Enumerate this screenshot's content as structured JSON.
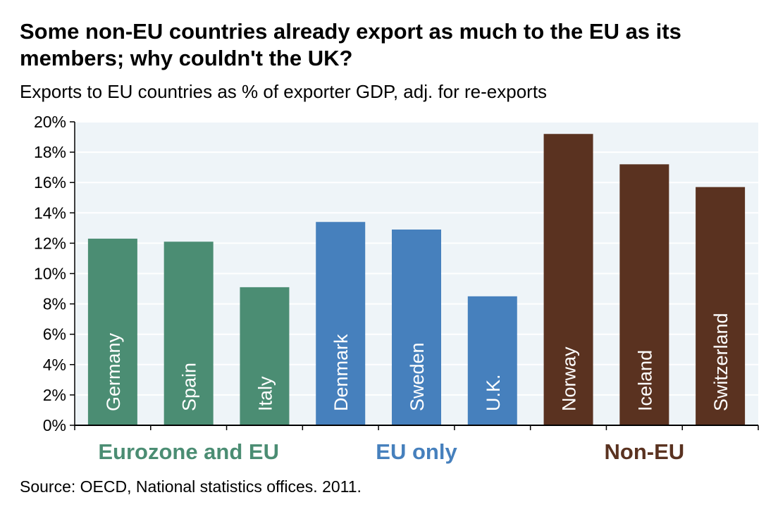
{
  "title": "Some non-EU countries already export as much to the EU as its members; why couldn't the UK?",
  "subtitle": "Exports to EU countries as % of exporter GDP, adj. for re-exports",
  "source": "Source: OECD, National statistics offices. 2011.",
  "chart_data": {
    "type": "bar",
    "title": "Some non-EU countries already export as much to the EU as its members; why couldn't the UK?",
    "subtitle": "Exports to EU countries as % of exporter GDP, adj. for re-exports",
    "xlabel": "",
    "ylabel": "",
    "ylim": [
      0,
      20
    ],
    "yticks": [
      "0%",
      "2%",
      "4%",
      "6%",
      "8%",
      "10%",
      "12%",
      "14%",
      "16%",
      "18%",
      "20%"
    ],
    "categories": [
      "Germany",
      "Spain",
      "Italy",
      "Denmark",
      "Sweden",
      "U.K.",
      "Norway",
      "Iceland",
      "Switzerland"
    ],
    "values": [
      12.3,
      12.1,
      9.1,
      13.4,
      12.9,
      8.5,
      19.2,
      17.2,
      15.7
    ],
    "groups": [
      {
        "label": "Eurozone and EU",
        "color": "#4b8d73",
        "members": [
          "Germany",
          "Spain",
          "Italy"
        ]
      },
      {
        "label": "EU only",
        "color": "#4680bd",
        "members": [
          "Denmark",
          "Sweden",
          "U.K."
        ]
      },
      {
        "label": "Non-EU",
        "color": "#5a3220",
        "members": [
          "Norway",
          "Iceland",
          "Switzerland"
        ]
      }
    ],
    "grid": true,
    "plot_background": "#eef4f8",
    "gridline_color": "#ffffff"
  }
}
